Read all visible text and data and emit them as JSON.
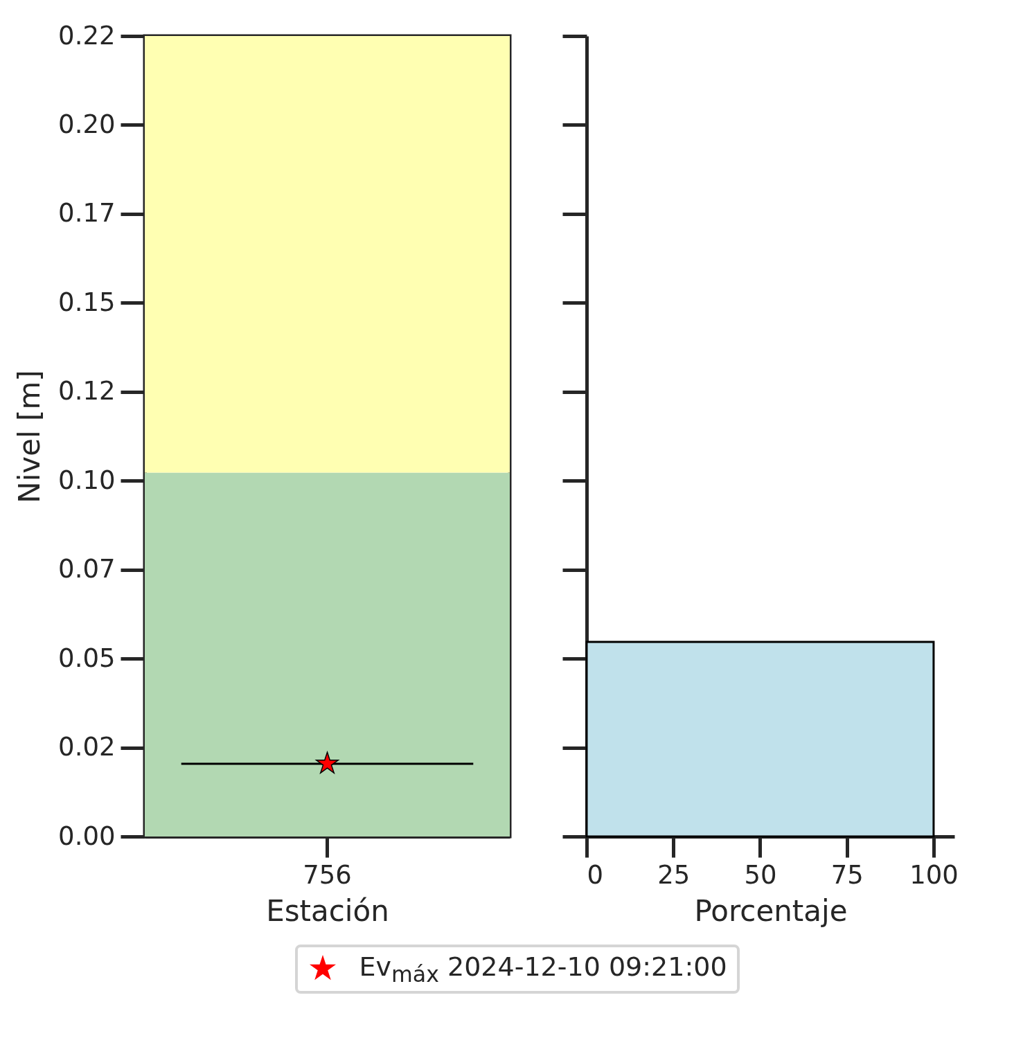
{
  "chart_data": [
    {
      "type": "scatter",
      "xlabel": "Estación",
      "ylabel": "Nivel [m]",
      "categories": [
        "756"
      ],
      "series": [
        {
          "name": "Ev$_{máx}$ 2024-12-10 09:21:00",
          "color": "#ff0000",
          "values": [
            0.02
          ],
          "marker": "star"
        }
      ],
      "ylim": [
        0,
        0.22
      ],
      "yticks": [
        {
          "value": 0,
          "label": "0.00"
        },
        {
          "value": 0.02444,
          "label": "0.02"
        },
        {
          "value": 0.04889,
          "label": "0.05"
        },
        {
          "value": 0.07333,
          "label": "0.07"
        },
        {
          "value": 0.09778,
          "label": "0.10"
        },
        {
          "value": 0.12222,
          "label": "0.12"
        },
        {
          "value": 0.14667,
          "label": "0.15"
        },
        {
          "value": 0.17111,
          "label": "0.17"
        },
        {
          "value": 0.19556,
          "label": "0.20"
        },
        {
          "value": 0.22,
          "label": "0.22"
        }
      ],
      "bands": [
        {
          "axis": "y",
          "from": 0,
          "to": 0.1,
          "color": "#b2d8b2"
        },
        {
          "axis": "y",
          "from": 0.1,
          "to": 0.22,
          "color": "#ffffb2"
        }
      ],
      "ref_lines": [
        {
          "axis": "y",
          "value": 0.02,
          "color": "#000000"
        }
      ],
      "legend": "bottom"
    },
    {
      "type": "histogram",
      "orientation": "horizontal",
      "xlabel": "Porcentaje",
      "bins": [
        0,
        0.0535
      ],
      "values": [
        100
      ],
      "color": "#c0e1eb",
      "xlim": [
        0,
        106
      ],
      "xticks": [
        0,
        25,
        50,
        75,
        100
      ],
      "ylim": [
        0,
        0.22
      ],
      "yticks": [
        {
          "value": 0,
          "label": null
        },
        {
          "value": 0.02444,
          "label": null
        },
        {
          "value": 0.04889,
          "label": null
        },
        {
          "value": 0.07333,
          "label": null
        },
        {
          "value": 0.09778,
          "label": null
        },
        {
          "value": 0.12222,
          "label": null
        },
        {
          "value": 0.14667,
          "label": null
        },
        {
          "value": 0.17111,
          "label": null
        },
        {
          "value": 0.19556,
          "label": null
        },
        {
          "value": 0.22,
          "label": null
        }
      ],
      "tick_labels": "x"
    }
  ]
}
